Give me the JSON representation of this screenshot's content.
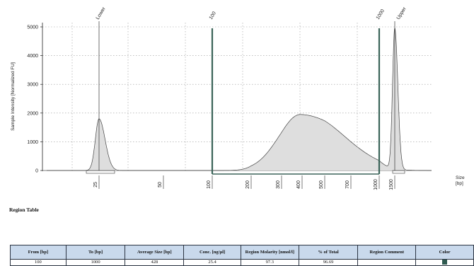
{
  "chart_data": {
    "type": "area",
    "xlabel": "Size\n[bp]",
    "ylabel": "Sample Intensity [Normalized FU]",
    "yticks": [
      0,
      1000,
      2000,
      3000,
      4000,
      5000
    ],
    "ylim": [
      0,
      5000
    ],
    "xtick_labels": [
      "25",
      "50",
      "100",
      "200",
      "300",
      "400",
      "500",
      "700",
      "1000",
      "1500"
    ],
    "grid": true,
    "peak_labels": [
      "Lower",
      "100",
      "1000",
      "Upper"
    ],
    "peaks": [
      {
        "name": "Lower",
        "center_bp": 25,
        "height": 1800
      },
      {
        "name": "Sample",
        "center_bp": 390,
        "height": 1950
      },
      {
        "name": "Upper",
        "center_bp": 1500,
        "height": 4900
      }
    ],
    "region": {
      "from_bp": 100,
      "to_bp": 1000
    },
    "colors": {
      "fill": "#dedede",
      "stroke": "#444444",
      "region": "#3b6459",
      "axis": "#222222"
    }
  },
  "region_table": {
    "heading": "Region Table",
    "columns": [
      "From [bp]",
      "To [bp]",
      "Average Size [bp]",
      "Conc. [ng/µl]",
      "Region Molarity [nmol/l]",
      "% of Total",
      "Region Comment",
      "Color"
    ],
    "rows": [
      {
        "from": "100",
        "to": "1000",
        "avg_size": "428",
        "conc": "25.4",
        "molarity": "97.3",
        "pct_total": "96.69",
        "comment": "",
        "color": "#2f5a50"
      }
    ]
  }
}
